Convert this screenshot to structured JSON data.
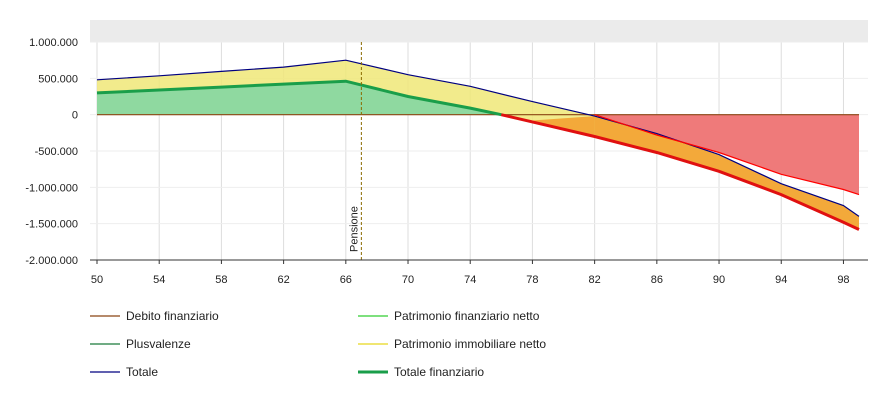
{
  "chart_data": {
    "type": "area",
    "x": [
      50,
      54,
      58,
      62,
      66,
      70,
      74,
      78,
      82,
      86,
      90,
      94,
      98,
      99
    ],
    "xticks": [
      "50",
      "54",
      "58",
      "62",
      "66",
      "70",
      "74",
      "78",
      "82",
      "86",
      "90",
      "94",
      "98"
    ],
    "yticks": [
      "1.000.000",
      "500.000",
      "0",
      "-500.000",
      "-1.000.000",
      "-1.500.000",
      "-2.000.000"
    ],
    "ylim": [
      -2000000,
      1000000
    ],
    "xlim": [
      50,
      99.5
    ],
    "grid": true,
    "legend_position": "bottom",
    "annotation": {
      "label": "Pensione",
      "x": 67
    },
    "series": [
      {
        "name": "Debito finanziario",
        "color": "#8b4513",
        "values": [
          0,
          0,
          0,
          0,
          0,
          0,
          0,
          0,
          0,
          0,
          0,
          0,
          0,
          0
        ]
      },
      {
        "name": "Patrimonio finanziario netto",
        "color": "#32cd32",
        "values": [
          300000,
          340000,
          380000,
          420000,
          460000,
          250000,
          90000,
          -100000,
          -300000,
          -520000,
          -780000,
          -1040000,
          -1330000,
          -1420000
        ]
      },
      {
        "name": "Plusvalenze",
        "color": "#1a7a3a",
        "values": [
          0,
          0,
          0,
          0,
          0,
          0,
          0,
          0,
          0,
          0,
          0,
          0,
          0,
          0
        ]
      },
      {
        "name": "Patrimonio immobiliare netto",
        "color": "#e6d81e",
        "values": [
          180000,
          195000,
          215000,
          235000,
          290000,
          300000,
          300000,
          250000,
          200000,
          150000,
          100000,
          50000,
          20000,
          10000
        ]
      },
      {
        "name": "Totale",
        "color": "#000080",
        "values": [
          480000,
          535000,
          595000,
          655000,
          750000,
          550000,
          390000,
          180000,
          -20000,
          -260000,
          -550000,
          -950000,
          -1250000,
          -1400000
        ]
      },
      {
        "name": "Totale finanziario",
        "color": "#1a9e4a",
        "values": [
          300000,
          340000,
          380000,
          420000,
          460000,
          250000,
          90000,
          -100000,
          -300000,
          -520000,
          -780000,
          -1100000,
          -1480000,
          -1580000
        ]
      }
    ],
    "deficit_line": {
      "color": "#ff0000",
      "x": [
        82,
        86,
        90,
        94,
        98,
        99
      ],
      "values": [
        0,
        -280000,
        -520000,
        -820000,
        -1030000,
        -1100000
      ]
    }
  }
}
